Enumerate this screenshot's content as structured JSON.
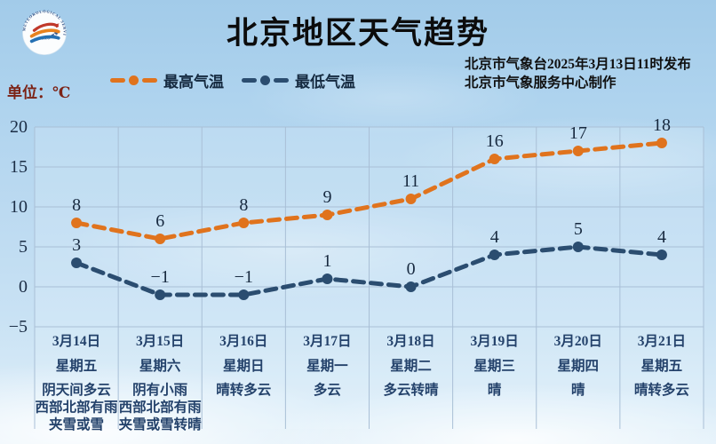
{
  "page": {
    "title": "北京地区天气趋势"
  },
  "logo": {
    "arc_top": "METEOROLOGICAL SERVICE",
    "arc_bottom": "BEIJING 气象服务"
  },
  "source": {
    "line1": "北京市气象台2025年3月13日11时发布",
    "line2": "北京市气象服务中心制作"
  },
  "unit_label": "单位：℃",
  "legend": [
    {
      "label": "最高气温",
      "color": "#e0731d"
    },
    {
      "label": "最低气温",
      "color": "#2b4d70"
    }
  ],
  "colors": {
    "grid": "#a9bfd6",
    "axis_text": "#1b2d45",
    "value_text": "#17293f",
    "day_text": "#24426b",
    "high": "#e0731d",
    "low": "#2b4d70",
    "unit_text": "#7c2316"
  },
  "chart_data": {
    "type": "line",
    "title": "北京地区天气趋势",
    "categories": [
      "3月14日",
      "3月15日",
      "3月16日",
      "3月17日",
      "3月18日",
      "3月19日",
      "3月20日",
      "3月21日"
    ],
    "weekdays": [
      "星期五",
      "星期六",
      "星期日",
      "星期一",
      "星期二",
      "星期三",
      "星期四",
      "星期五"
    ],
    "weather": [
      [
        "阴天间多云",
        "西部北部有雨",
        "夹雪或雪"
      ],
      [
        "阴有小雨",
        "西部北部有雨",
        "夹雪或雪转晴"
      ],
      [
        "晴转多云"
      ],
      [
        "多云"
      ],
      [
        "多云转晴"
      ],
      [
        "晴"
      ],
      [
        "晴"
      ],
      [
        "晴转多云"
      ]
    ],
    "series": [
      {
        "name": "最高气温",
        "color": "#e0731d",
        "values": [
          8,
          6,
          8,
          9,
          11,
          16,
          17,
          18
        ]
      },
      {
        "name": "最低气温",
        "color": "#2b4d70",
        "values": [
          3,
          -1,
          -1,
          1,
          0,
          4,
          5,
          4
        ]
      }
    ],
    "ylim": [
      -5,
      20
    ],
    "yticks": [
      20,
      15,
      10,
      5,
      0,
      -5
    ],
    "grid": true,
    "legend_position": "top",
    "line_style": "dashed"
  }
}
